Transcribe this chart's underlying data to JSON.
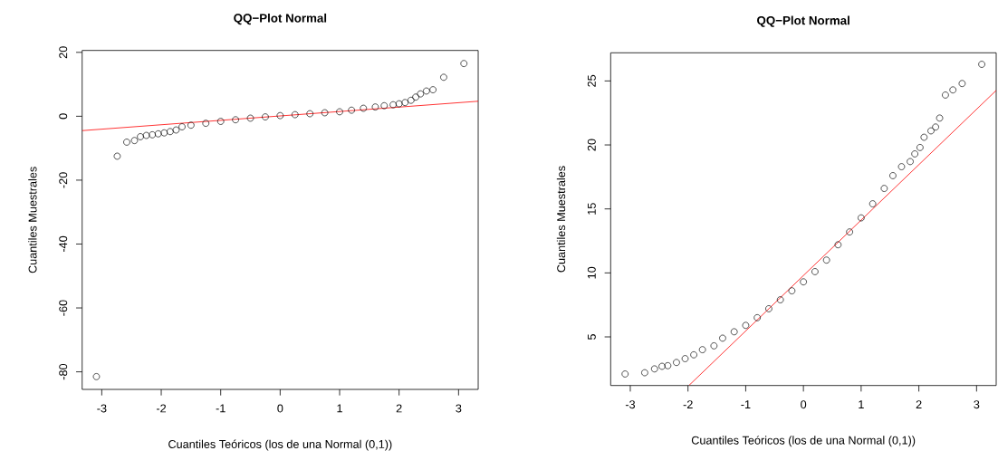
{
  "chart_data": [
    {
      "type": "scatter",
      "title": "**QQ−Plot Normal**",
      "xlabel": "Cuantiles Teóricos (los de una Normal (0,1))",
      "ylabel": "Cuantiles Muestrales",
      "grid": false,
      "xlim": [
        -3.33,
        3.33
      ],
      "ylim": [
        -85.5,
        20.6
      ],
      "xticks": [
        -3,
        -2,
        -1,
        0,
        1,
        2,
        3
      ],
      "yticks": [
        -80,
        -60,
        -40,
        -20,
        0,
        20
      ],
      "series": [
        {
          "type": "scatter",
          "color": "#000000",
          "marker": "circle",
          "x": [
            -3.09,
            -2.74,
            -2.58,
            -2.45,
            -2.35,
            -2.25,
            -2.15,
            -2.05,
            -1.95,
            -1.85,
            -1.75,
            -1.65,
            -1.5,
            -1.25,
            -1.0,
            -0.75,
            -0.5,
            -0.25,
            0,
            0.25,
            0.5,
            0.75,
            1.0,
            1.2,
            1.4,
            1.6,
            1.75,
            1.9,
            2.0,
            2.1,
            2.2,
            2.28,
            2.36,
            2.46,
            2.57,
            2.75,
            3.09
          ],
          "values": [
            -81.5,
            -12.5,
            -8.1,
            -7.6,
            -6.4,
            -6.0,
            -5.8,
            -5.5,
            -5.2,
            -4.8,
            -4.3,
            -3.3,
            -2.8,
            -2.2,
            -1.6,
            -1.1,
            -0.6,
            -0.2,
            0.2,
            0.5,
            0.8,
            1.1,
            1.4,
            1.9,
            2.5,
            2.9,
            3.3,
            3.6,
            3.9,
            4.3,
            5.0,
            6.0,
            7.0,
            7.9,
            8.3,
            12.2,
            16.5
          ]
        },
        {
          "type": "line",
          "color": "#ff0000",
          "x": [
            -3.33,
            3.33
          ],
          "values": [
            -4.5,
            4.7
          ]
        }
      ]
    },
    {
      "type": "scatter",
      "title": "**QQ−Plot Normal**",
      "xlabel": "Cuantiles Teóricos (los de una Normal (0,1))",
      "ylabel": "Cuantiles Muestrales",
      "grid": false,
      "xlim": [
        -3.34,
        3.34
      ],
      "ylim": [
        1.2,
        27.2
      ],
      "xticks": [
        -3,
        -2,
        -1,
        0,
        1,
        2,
        3
      ],
      "yticks": [
        5,
        10,
        15,
        20,
        25
      ],
      "series": [
        {
          "type": "scatter",
          "color": "#000000",
          "marker": "circle",
          "x": [
            -3.09,
            -2.75,
            -2.58,
            -2.45,
            -2.35,
            -2.2,
            -2.05,
            -1.9,
            -1.75,
            -1.55,
            -1.4,
            -1.2,
            -1.0,
            -0.8,
            -0.6,
            -0.4,
            -0.2,
            0,
            0.2,
            0.4,
            0.6,
            0.8,
            1.0,
            1.2,
            1.4,
            1.55,
            1.7,
            1.85,
            1.93,
            2.02,
            2.09,
            2.21,
            2.29,
            2.36,
            2.46,
            2.59,
            2.75,
            3.09
          ],
          "values": [
            2.1,
            2.2,
            2.5,
            2.7,
            2.75,
            3.0,
            3.3,
            3.6,
            4.0,
            4.3,
            4.9,
            5.4,
            5.9,
            6.5,
            7.2,
            7.9,
            8.6,
            9.3,
            10.1,
            11.0,
            12.2,
            13.2,
            14.3,
            15.4,
            16.6,
            17.6,
            18.3,
            18.7,
            19.3,
            19.8,
            20.6,
            21.1,
            21.4,
            22.1,
            23.9,
            24.3,
            24.8,
            26.3
          ]
        },
        {
          "type": "line",
          "color": "#ff0000",
          "x": [
            -1.98,
            3.34
          ],
          "values": [
            1.22,
            24.26
          ]
        }
      ]
    }
  ]
}
